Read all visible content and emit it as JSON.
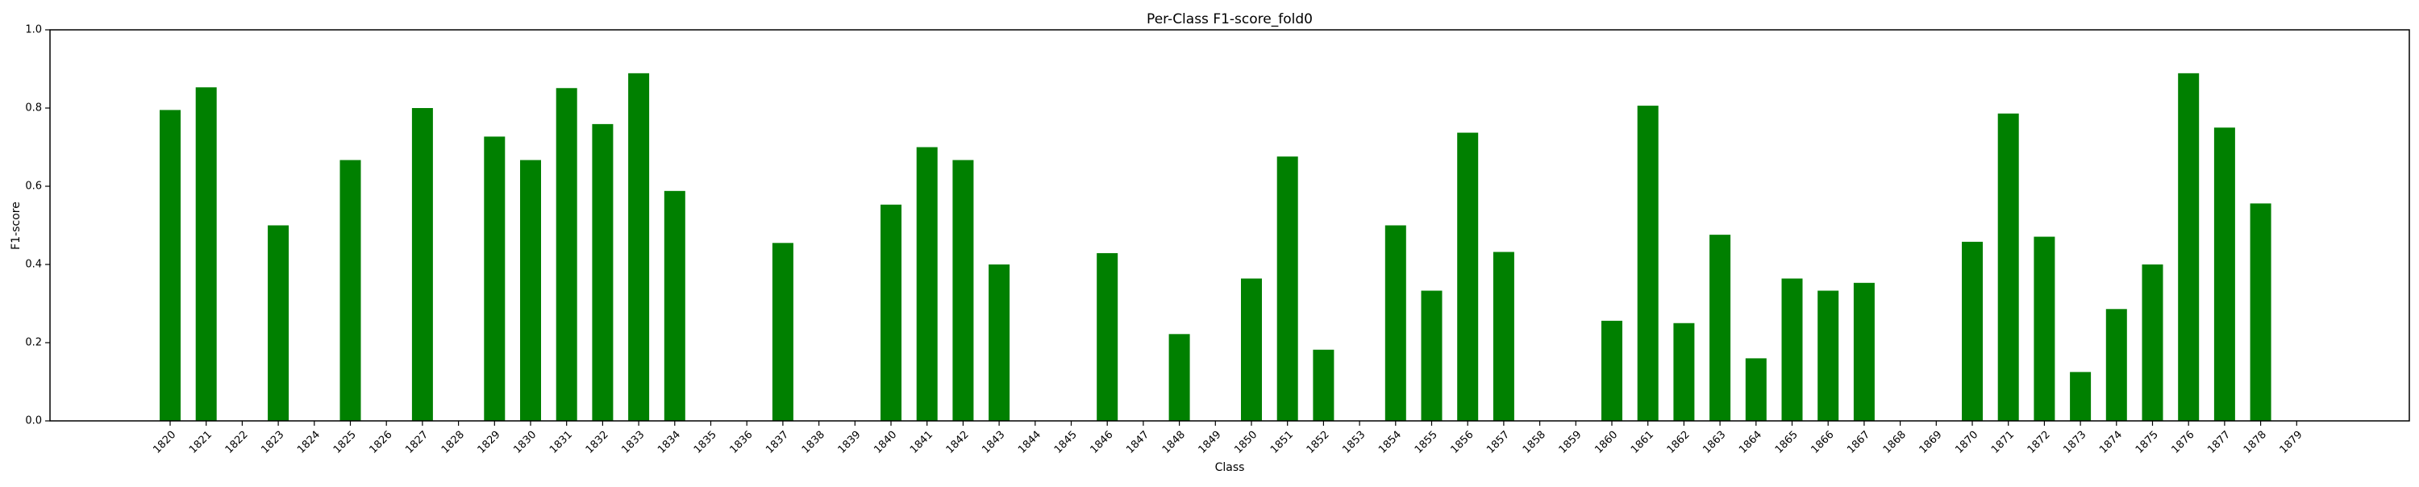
{
  "chart_data": {
    "type": "bar",
    "title": "Per-Class F1-score_fold0",
    "xlabel": "Class",
    "ylabel": "F1-score",
    "ylim": [
      0,
      1.0
    ],
    "yticks": [
      "0.0",
      "0.2",
      "0.4",
      "0.6",
      "0.8",
      "1.0"
    ],
    "grid": false,
    "bar_color": "#008000",
    "categories": [
      "1820",
      "1821",
      "1822",
      "1823",
      "1824",
      "1825",
      "1826",
      "1827",
      "1828",
      "1829",
      "1830",
      "1831",
      "1832",
      "1833",
      "1834",
      "1835",
      "1836",
      "1837",
      "1838",
      "1839",
      "1840",
      "1841",
      "1842",
      "1843",
      "1844",
      "1845",
      "1846",
      "1847",
      "1848",
      "1849",
      "1850",
      "1851",
      "1852",
      "1853",
      "1854",
      "1855",
      "1856",
      "1857",
      "1858",
      "1859",
      "1860",
      "1861",
      "1862",
      "1863",
      "1864",
      "1865",
      "1866",
      "1867",
      "1868",
      "1869",
      "1870",
      "1871",
      "1872",
      "1873",
      "1874",
      "1875",
      "1876",
      "1877",
      "1878",
      "1879"
    ],
    "values": [
      0.795,
      0.853,
      0,
      0.5,
      0,
      0.667,
      0,
      0.8,
      0,
      0.727,
      0.667,
      0.851,
      0.759,
      0.889,
      0.588,
      0,
      0,
      0.455,
      0,
      0,
      0.553,
      0.7,
      0.667,
      0.4,
      0,
      0,
      0.429,
      0,
      0.222,
      0,
      0.364,
      0.676,
      0.182,
      0,
      0.5,
      0.333,
      0.737,
      0.432,
      0,
      0,
      0.256,
      0.806,
      0.25,
      0.476,
      0.16,
      0.364,
      0.333,
      0.353,
      0,
      0,
      0.458,
      0.786,
      0.471,
      0.125,
      0.286,
      0.4,
      0.889,
      0.75,
      0.556,
      0
    ]
  }
}
